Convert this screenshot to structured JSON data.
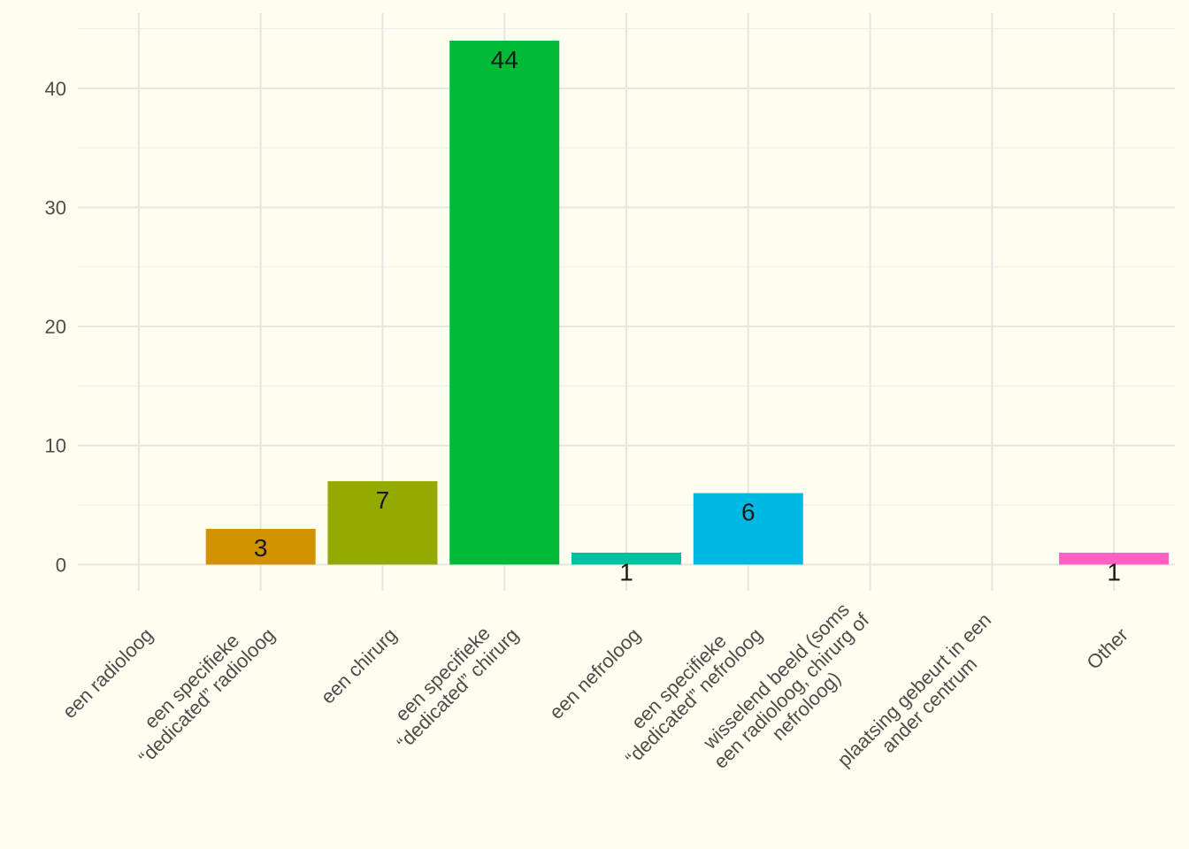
{
  "chart_data": {
    "type": "bar",
    "title": "",
    "xlabel": "",
    "ylabel": "",
    "categories": [
      [
        "een radioloog"
      ],
      [
        "een specifieke",
        "“dedicated” radioloog"
      ],
      [
        "een chirurg"
      ],
      [
        "een specifieke",
        "“dedicated” chirurg"
      ],
      [
        "een nefroloog"
      ],
      [
        "een specifieke",
        "“dedicated” nefroloog"
      ],
      [
        "wisselend beeld (soms",
        "een radioloog, chirurg of",
        "nefroloog)"
      ],
      [
        "plaatsing gebeurt in een",
        "ander centrum"
      ],
      [
        "Other"
      ]
    ],
    "values": [
      0,
      3,
      7,
      44,
      1,
      6,
      0,
      0,
      1
    ],
    "data_labels": [
      "",
      "3",
      "7",
      "44",
      "1",
      "6",
      "",
      "",
      "1"
    ],
    "colors": [
      "#F8766D",
      "#D39200",
      "#93AA00",
      "#00BA38",
      "#00C19F",
      "#00B9E3",
      "#619CFF",
      "#DB72FB",
      "#FF61C3"
    ],
    "yticks": [
      "0",
      "10",
      "20",
      "30",
      "40"
    ],
    "ylim": [
      -2.2,
      46.3
    ],
    "grid": true,
    "legend": "none"
  }
}
